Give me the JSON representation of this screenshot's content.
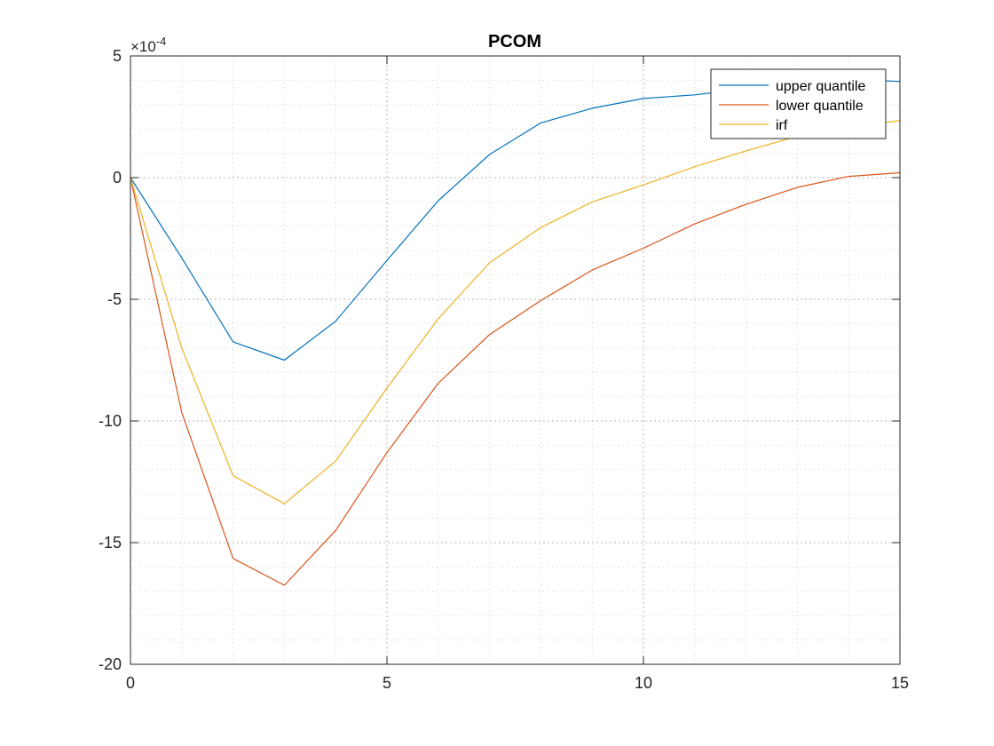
{
  "chart_data": {
    "type": "line",
    "title": "PCOM",
    "xlabel": "",
    "ylabel": "",
    "xlim": [
      0,
      15
    ],
    "ylim": [
      -20,
      5
    ],
    "y_scale_exponent": "-4",
    "y_multiplier_label": "×10",
    "x_ticks": [
      0,
      5,
      10,
      15
    ],
    "y_ticks": [
      -20,
      -15,
      -10,
      -5,
      0,
      5
    ],
    "grid": true,
    "minor_grid": true,
    "legend_position": "top-right",
    "x": [
      0,
      1,
      2,
      3,
      4,
      5,
      6,
      7,
      8,
      9,
      10,
      11,
      12,
      13,
      14,
      15
    ],
    "series": [
      {
        "name": "upper quantile",
        "color": "#0072BD",
        "values": [
          0,
          -3.3,
          -6.75,
          -7.5,
          -5.9,
          -3.4,
          -0.95,
          0.95,
          2.25,
          2.85,
          3.25,
          3.4,
          3.65,
          3.9,
          4.05,
          3.95
        ]
      },
      {
        "name": "lower quantile",
        "color": "#D95319",
        "values": [
          0,
          -9.65,
          -15.65,
          -16.75,
          -14.5,
          -11.3,
          -8.45,
          -6.45,
          -5.05,
          -3.8,
          -2.9,
          -1.9,
          -1.1,
          -0.4,
          0.05,
          0.2
        ]
      },
      {
        "name": "irf",
        "color": "#EDB120",
        "values": [
          0,
          -7.0,
          -12.25,
          -13.4,
          -11.65,
          -8.65,
          -5.8,
          -3.5,
          -2.05,
          -1.0,
          -0.3,
          0.45,
          1.1,
          1.7,
          2.05,
          2.35
        ]
      }
    ]
  }
}
